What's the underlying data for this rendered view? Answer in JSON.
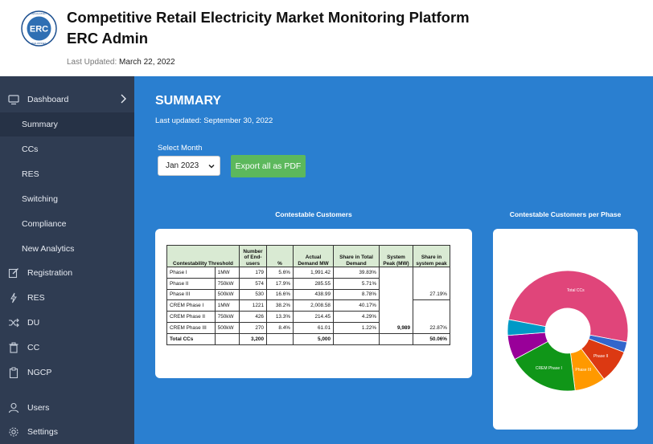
{
  "header": {
    "logo_text": "ERC",
    "logo_ring_text": "ENERGY REGULATORY COMMISSION · PHILIPPINES",
    "title_line1": "Competitive Retail Electricity Market Monitoring Platform",
    "title_line2": "ERC Admin",
    "last_updated_label": "Last Updated:",
    "last_updated_value": "March 22, 2022"
  },
  "sidebar": {
    "items": [
      {
        "label": "Dashboard",
        "icon": "monitor-icon"
      },
      {
        "label": "Summary"
      },
      {
        "label": "CCs"
      },
      {
        "label": "RES"
      },
      {
        "label": "Switching"
      },
      {
        "label": "Compliance"
      },
      {
        "label": "New Analytics"
      },
      {
        "label": "Registration",
        "icon": "edit-icon"
      },
      {
        "label": "RES",
        "icon": "bolt-icon"
      },
      {
        "label": "DU",
        "icon": "shuffle-icon"
      },
      {
        "label": "CC",
        "icon": "trash-icon"
      },
      {
        "label": "NGCP",
        "icon": "clipboard-icon"
      },
      {
        "label": "Users",
        "icon": "user-icon"
      },
      {
        "label": "Settings",
        "icon": "gear-icon"
      }
    ]
  },
  "main": {
    "heading": "SUMMARY",
    "last_updated": "Last updated: September 30, 2022",
    "select_month_label": "Select Month",
    "select_month_value": "Jan 2023",
    "export_label": "Export all as PDF",
    "table_title": "Contestable Customers",
    "pie_title": "Contestable Customers per Phase"
  },
  "table": {
    "headers": [
      "Contestability Threshold",
      "Number of End-users",
      "%",
      "Actual Demand MW",
      "Share in Total Demand",
      "System Peak (MW)",
      "Share in system peak"
    ],
    "rows": [
      [
        "Phase I",
        "1MW",
        "179",
        "5.6%",
        "1,991.42",
        "39.83%",
        "",
        ""
      ],
      [
        "Phase II",
        "750kW",
        "574",
        "17.9%",
        "285.55",
        "5.71%",
        "",
        ""
      ],
      [
        "Phase III",
        "500kW",
        "530",
        "16.6%",
        "438.99",
        "8.78%",
        "",
        "27.19%"
      ],
      [
        "CREM Phase I",
        "1MW",
        "1221",
        "38.2%",
        "2,008.58",
        "40.17%",
        "",
        ""
      ],
      [
        "CREM Phase II",
        "750kW",
        "426",
        "13.3%",
        "214.45",
        "4.29%",
        "",
        ""
      ],
      [
        "CREM Phase III",
        "500kW",
        "270",
        "8.4%",
        "61.01",
        "1.22%",
        "9,989",
        "22.87%"
      ]
    ],
    "total": [
      "Total CCs",
      "",
      "3,200",
      "",
      "5,000",
      "",
      "",
      "50.06%"
    ]
  },
  "chart_data": {
    "type": "pie",
    "title": "Contestable Customers per Phase",
    "labels": [
      "Total CCs",
      "",
      "Phase II",
      "Phase III",
      "CREM Phase I",
      "",
      ""
    ],
    "values": [
      3200,
      179,
      574,
      530,
      1221,
      426,
      270
    ],
    "colors": [
      "#e0457a",
      "#3366cc",
      "#dc3912",
      "#ff9900",
      "#109618",
      "#990099",
      "#0099c6"
    ],
    "donut": true
  }
}
